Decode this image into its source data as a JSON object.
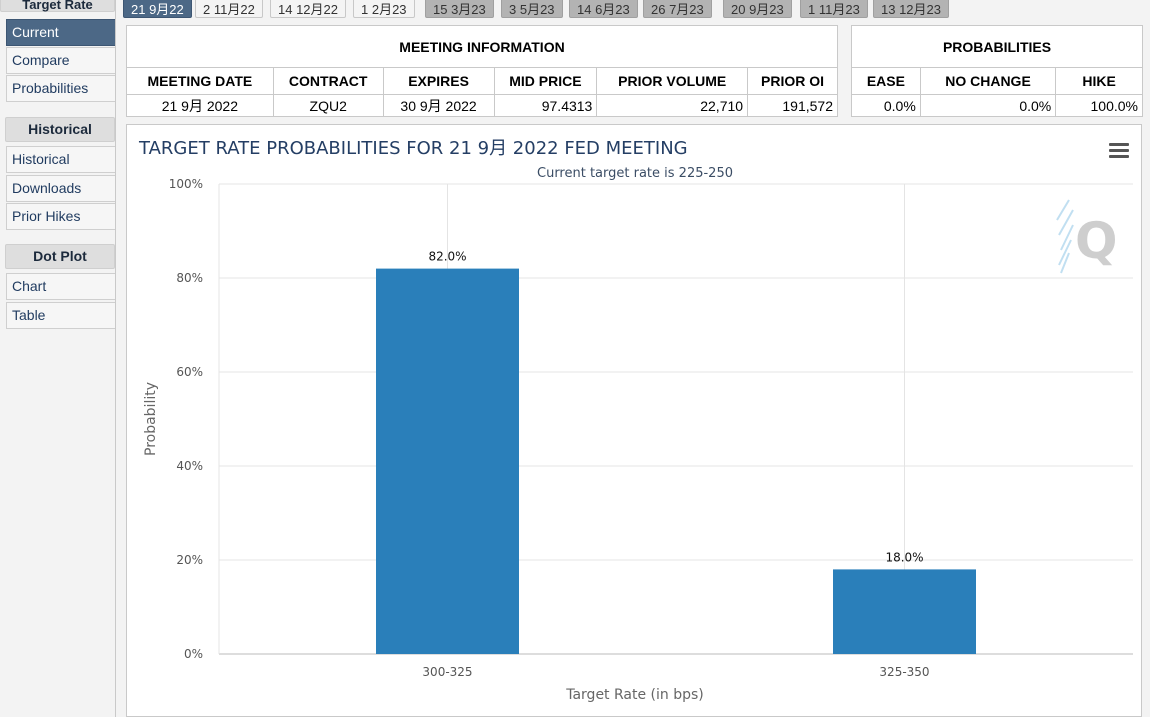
{
  "sidebar": {
    "top_label": "Target Rate",
    "items_current": [
      {
        "label": "Current",
        "active": true
      },
      {
        "label": "Compare"
      },
      {
        "label": "Probabilities"
      }
    ],
    "historical_heading": "Historical",
    "items_historical": [
      {
        "label": "Historical"
      },
      {
        "label": "Downloads"
      },
      {
        "label": "Prior Hikes"
      }
    ],
    "dotplot_heading": "Dot Plot",
    "items_dotplot": [
      {
        "label": "Chart"
      },
      {
        "label": "Table"
      }
    ]
  },
  "tabs": [
    {
      "label": "21 9月22",
      "active": true
    },
    {
      "label": "2 11月22",
      "style": "light"
    },
    {
      "label": "14 12月22",
      "style": "light"
    },
    {
      "label": "1 2月23",
      "style": "light"
    },
    {
      "label": "15 3月23"
    },
    {
      "label": "3 5月23"
    },
    {
      "label": "14 6月23"
    },
    {
      "label": "26 7月23"
    },
    {
      "label": "20 9月23"
    },
    {
      "label": "1 11月23"
    },
    {
      "label": "13 12月23"
    }
  ],
  "meeting_info": {
    "title": "MEETING INFORMATION",
    "headers": [
      "MEETING DATE",
      "CONTRACT",
      "EXPIRES",
      "MID PRICE",
      "PRIOR VOLUME",
      "PRIOR OI"
    ],
    "row": [
      "21 9月 2022",
      "ZQU2",
      "30 9月 2022",
      "97.4313",
      "22,710",
      "191,572"
    ]
  },
  "probabilities": {
    "title": "PROBABILITIES",
    "headers": [
      "EASE",
      "NO CHANGE",
      "HIKE"
    ],
    "row": [
      "0.0%",
      "0.0%",
      "100.0%"
    ]
  },
  "chart": {
    "menu_icon": "hamburger-menu-icon",
    "logo_icon": "q-logo-icon"
  },
  "chart_data": {
    "type": "bar",
    "title": "TARGET RATE PROBABILITIES FOR 21 9月 2022 FED MEETING",
    "subtitle": "Current target rate is 225-250",
    "categories": [
      "300-325",
      "325-350"
    ],
    "values": [
      82.0,
      18.0
    ],
    "data_labels": [
      "82.0%",
      "18.0%"
    ],
    "xlabel": "Target Rate (in bps)",
    "ylabel": "Probability",
    "ylim": [
      0,
      100
    ],
    "yticks": [
      0,
      20,
      40,
      60,
      80,
      100
    ],
    "ytick_labels": [
      "0%",
      "20%",
      "40%",
      "60%",
      "80%",
      "100%"
    ],
    "bar_color": "#2a7fba",
    "grid": true,
    "legend": "none"
  }
}
